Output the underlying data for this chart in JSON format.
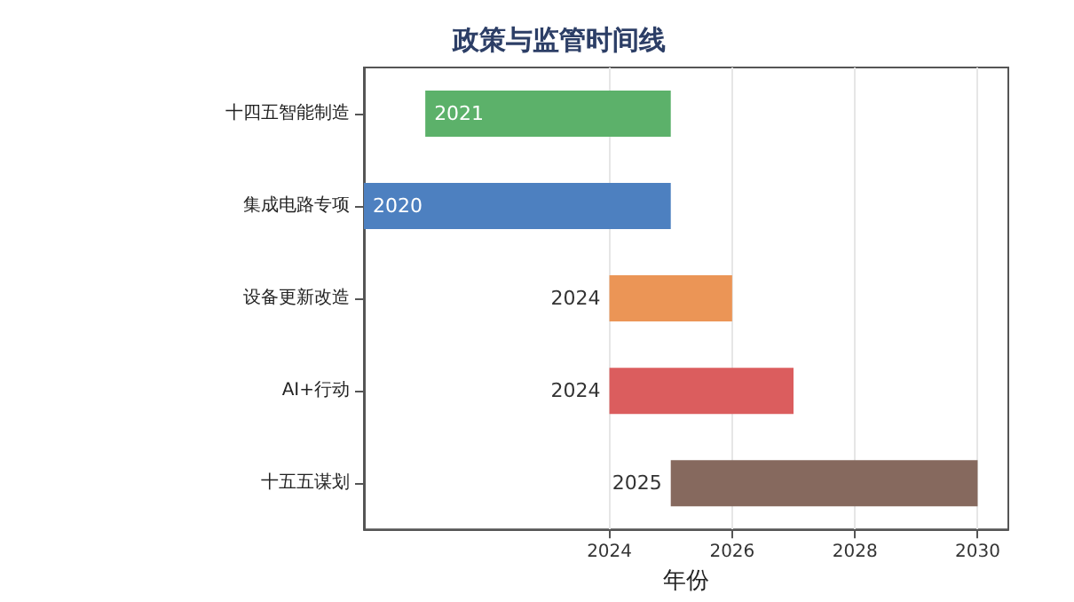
{
  "chart_data": {
    "type": "bar",
    "orientation": "horizontal",
    "title": "政策与监管时间线",
    "xlabel": "年份",
    "categories": [
      "十四五智能制造",
      "集成电路专项",
      "设备更新改造",
      "AI+行动",
      "十五五谋划"
    ],
    "base": [
      2021,
      2020,
      2024,
      2024,
      2025
    ],
    "values": [
      4,
      5,
      2,
      3,
      5
    ],
    "colors": [
      "#5cb16a",
      "#4d80c0",
      "#eb9556",
      "#db5d5e",
      "#86695e"
    ],
    "annotations": [
      {
        "text": "2021",
        "x": 2021,
        "y": "十四五智能制造"
      },
      {
        "text": "2020",
        "x": 2020,
        "y": "集成电路专项"
      },
      {
        "text": "2024",
        "x": 2024,
        "y": "设备更新改造"
      },
      {
        "text": "2024",
        "x": 2024,
        "y": "AI+行动"
      },
      {
        "text": "2025",
        "x": 2025,
        "y": "十五五谋划"
      }
    ],
    "xlim": [
      2020,
      2030.5
    ],
    "xticks": [
      2024,
      2026,
      2028,
      2030
    ],
    "grid": "x"
  }
}
